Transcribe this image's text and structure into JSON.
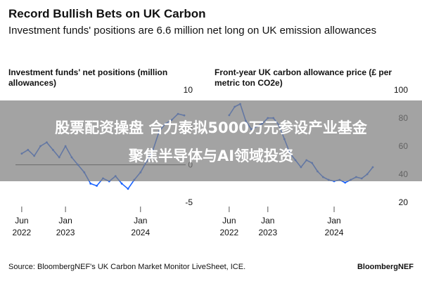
{
  "header": {
    "title": "Record Bullish Bets on UK Carbon",
    "subtitle": "Investment funds' positions are 6.6 million net long on UK emission allowances"
  },
  "overlay": {
    "line1": "股票配资操盘 合力泰拟5000万元参设产业基金",
    "line2": "聚焦半导体与AI领域投资"
  },
  "footer": {
    "source": "Source: BloombergNEF's UK Carbon Market Monitor LiveSheet, ICE.",
    "brand": "BloombergNEF"
  },
  "colors": {
    "line": "#1a63ff",
    "zero_line": "#333333",
    "text": "#111111"
  },
  "chart_data": [
    {
      "type": "line",
      "title": "Investment funds' net positions (million allowances)",
      "x_ticks": [
        {
          "top": "Jun",
          "bottom": "2022",
          "date": "2022-06"
        },
        {
          "top": "Jan",
          "bottom": "2023",
          "date": "2023-01"
        },
        {
          "top": "Jan",
          "bottom": "2024",
          "date": "2024-01"
        }
      ],
      "y_ticks": [
        "10",
        "5",
        "0",
        "-5"
      ],
      "ylim": [
        -5,
        10
      ],
      "y_axis_side": "right",
      "series": [
        {
          "x": [
            "2022-06",
            "2022-07",
            "2022-08",
            "2022-09",
            "2022-10",
            "2022-11",
            "2022-12",
            "2023-01",
            "2023-02",
            "2023-03",
            "2023-04",
            "2023-05",
            "2023-06",
            "2023-07",
            "2023-08",
            "2023-09",
            "2023-10",
            "2023-11",
            "2023-12",
            "2024-01",
            "2024-02",
            "2024-03",
            "2024-04",
            "2024-05",
            "2024-06",
            "2024-07",
            "2024-08"
          ],
          "values": [
            1.5,
            2,
            1.2,
            2.5,
            3,
            2,
            1,
            2.5,
            1,
            0,
            -1,
            -2.5,
            -2.8,
            -1.8,
            -2.2,
            -1.5,
            -2.5,
            -3.2,
            -2,
            -1,
            0.5,
            2,
            4.5,
            5.5,
            6,
            6.8,
            6.6
          ]
        }
      ]
    },
    {
      "type": "line",
      "title": "Front-year UK carbon allowance price (£ per metric ton CO2e)",
      "x_ticks": [
        {
          "top": "Jun",
          "bottom": "2022",
          "date": "2022-06"
        },
        {
          "top": "Jan",
          "bottom": "2023",
          "date": "2023-01"
        },
        {
          "top": "Jan",
          "bottom": "2024",
          "date": "2024-01"
        }
      ],
      "y_ticks": [
        "100",
        "80",
        "60",
        "40",
        "20"
      ],
      "ylim": [
        20,
        100
      ],
      "y_axis_side": "right",
      "series": [
        {
          "x": [
            "2022-06",
            "2022-07",
            "2022-08",
            "2022-09",
            "2022-10",
            "2022-11",
            "2022-12",
            "2023-01",
            "2023-02",
            "2023-03",
            "2023-04",
            "2023-05",
            "2023-06",
            "2023-07",
            "2023-08",
            "2023-09",
            "2023-10",
            "2023-11",
            "2023-12",
            "2024-01",
            "2024-02",
            "2024-03",
            "2024-04",
            "2024-05",
            "2024-06",
            "2024-07",
            "2024-08"
          ],
          "values": [
            82,
            88,
            90,
            78,
            72,
            74,
            76,
            80,
            80,
            75,
            65,
            55,
            50,
            45,
            50,
            48,
            42,
            38,
            36,
            35,
            36,
            34,
            36,
            38,
            37,
            40,
            45
          ]
        }
      ]
    }
  ]
}
